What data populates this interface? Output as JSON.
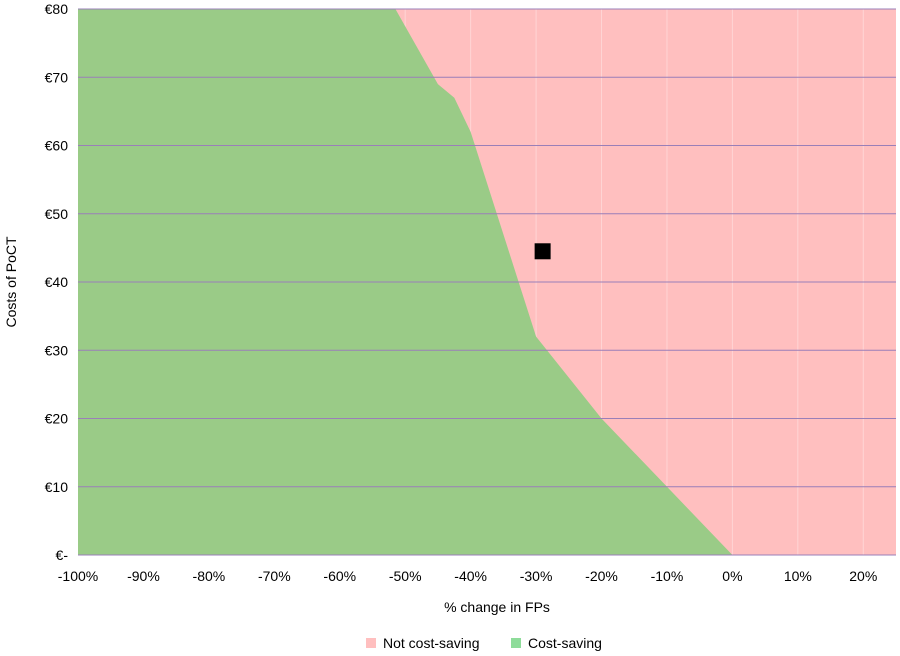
{
  "chart_data": {
    "type": "area",
    "xlabel": "% change in FPs",
    "ylabel": "Costs of PoCT",
    "xlim": [
      -100,
      25
    ],
    "ylim": [
      0,
      80
    ],
    "x_ticks": [
      -100,
      -90,
      -80,
      -70,
      -60,
      -50,
      -40,
      -30,
      -20,
      -10,
      0,
      10,
      20
    ],
    "x_tick_labels": [
      "-100%",
      "-90%",
      "-80%",
      "-70%",
      "-60%",
      "-50%",
      "-40%",
      "-30%",
      "-20%",
      "-10%",
      "0%",
      "10%",
      "20%"
    ],
    "y_ticks": [
      0,
      10,
      20,
      30,
      40,
      50,
      60,
      70,
      80
    ],
    "y_tick_labels": [
      "€-",
      "€10",
      "€20",
      "€30",
      "€40",
      "€50",
      "€60",
      "€70",
      "€80"
    ],
    "grid": true,
    "legend_position": "bottom",
    "series": [
      {
        "name": "Not cost-saving",
        "color": "#ffbfbf",
        "region": "above boundary"
      },
      {
        "name": "Cost-saving",
        "color": "#9acb87",
        "region": "below boundary"
      }
    ],
    "boundary": {
      "x": [
        0,
        -10,
        -20,
        -30,
        -40,
        -42.5,
        -45,
        -51.5
      ],
      "y": [
        0,
        10,
        20,
        32,
        62,
        67,
        69,
        80
      ]
    },
    "point": {
      "x": -29,
      "y": 44.5,
      "color": "#000000"
    },
    "legend": [
      {
        "label": "Not cost-saving",
        "color": "#ffbfbf"
      },
      {
        "label": "Cost-saving",
        "color": "#8edc9a"
      }
    ]
  }
}
